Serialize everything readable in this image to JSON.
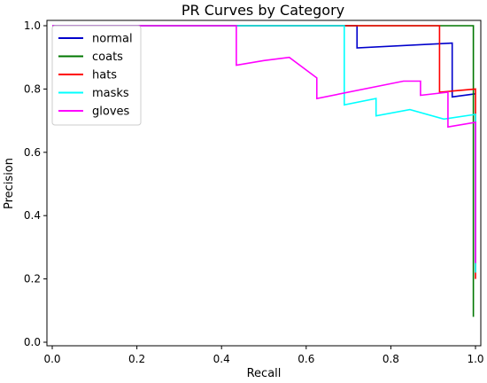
{
  "chart_data": {
    "type": "line",
    "title": "PR Curves by Category",
    "xlabel": "Recall",
    "ylabel": "Precision",
    "xlim": [
      0.0,
      1.0
    ],
    "ylim": [
      0.0,
      1.0
    ],
    "xticks": [
      "0.0",
      "0.2",
      "0.4",
      "0.6",
      "0.8",
      "1.0"
    ],
    "yticks": [
      "0.0",
      "0.2",
      "0.4",
      "0.6",
      "0.8",
      "1.0"
    ],
    "grid": false,
    "legend_position": "top-left",
    "series": [
      {
        "name": "normal",
        "color": "#0000cc",
        "points": [
          [
            0.0,
            1.0
          ],
          [
            0.72,
            1.0
          ],
          [
            0.72,
            0.93
          ],
          [
            0.945,
            0.945
          ],
          [
            0.945,
            0.775
          ],
          [
            1.0,
            0.785
          ],
          [
            1.0,
            0.785
          ]
        ]
      },
      {
        "name": "coats",
        "color": "#007700",
        "points": [
          [
            0.0,
            1.0
          ],
          [
            0.995,
            1.0
          ],
          [
            0.995,
            0.08
          ]
        ]
      },
      {
        "name": "hats",
        "color": "#ff0000",
        "points": [
          [
            0.0,
            1.0
          ],
          [
            0.915,
            1.0
          ],
          [
            0.915,
            0.79
          ],
          [
            1.0,
            0.8
          ],
          [
            1.0,
            0.2
          ]
        ]
      },
      {
        "name": "masks",
        "color": "#00ffff",
        "points": [
          [
            0.0,
            1.0
          ],
          [
            0.69,
            1.0
          ],
          [
            0.69,
            0.75
          ],
          [
            0.765,
            0.77
          ],
          [
            0.765,
            0.715
          ],
          [
            0.845,
            0.735
          ],
          [
            0.925,
            0.705
          ],
          [
            1.0,
            0.72
          ],
          [
            1.0,
            0.22
          ]
        ]
      },
      {
        "name": "gloves",
        "color": "#ff00ff",
        "points": [
          [
            0.0,
            1.0
          ],
          [
            0.435,
            1.0
          ],
          [
            0.435,
            0.875
          ],
          [
            0.5,
            0.89
          ],
          [
            0.56,
            0.9
          ],
          [
            0.625,
            0.835
          ],
          [
            0.625,
            0.77
          ],
          [
            0.83,
            0.825
          ],
          [
            0.87,
            0.825
          ],
          [
            0.87,
            0.78
          ],
          [
            0.935,
            0.79
          ],
          [
            0.935,
            0.68
          ],
          [
            1.0,
            0.695
          ],
          [
            1.0,
            0.25
          ]
        ]
      }
    ]
  }
}
